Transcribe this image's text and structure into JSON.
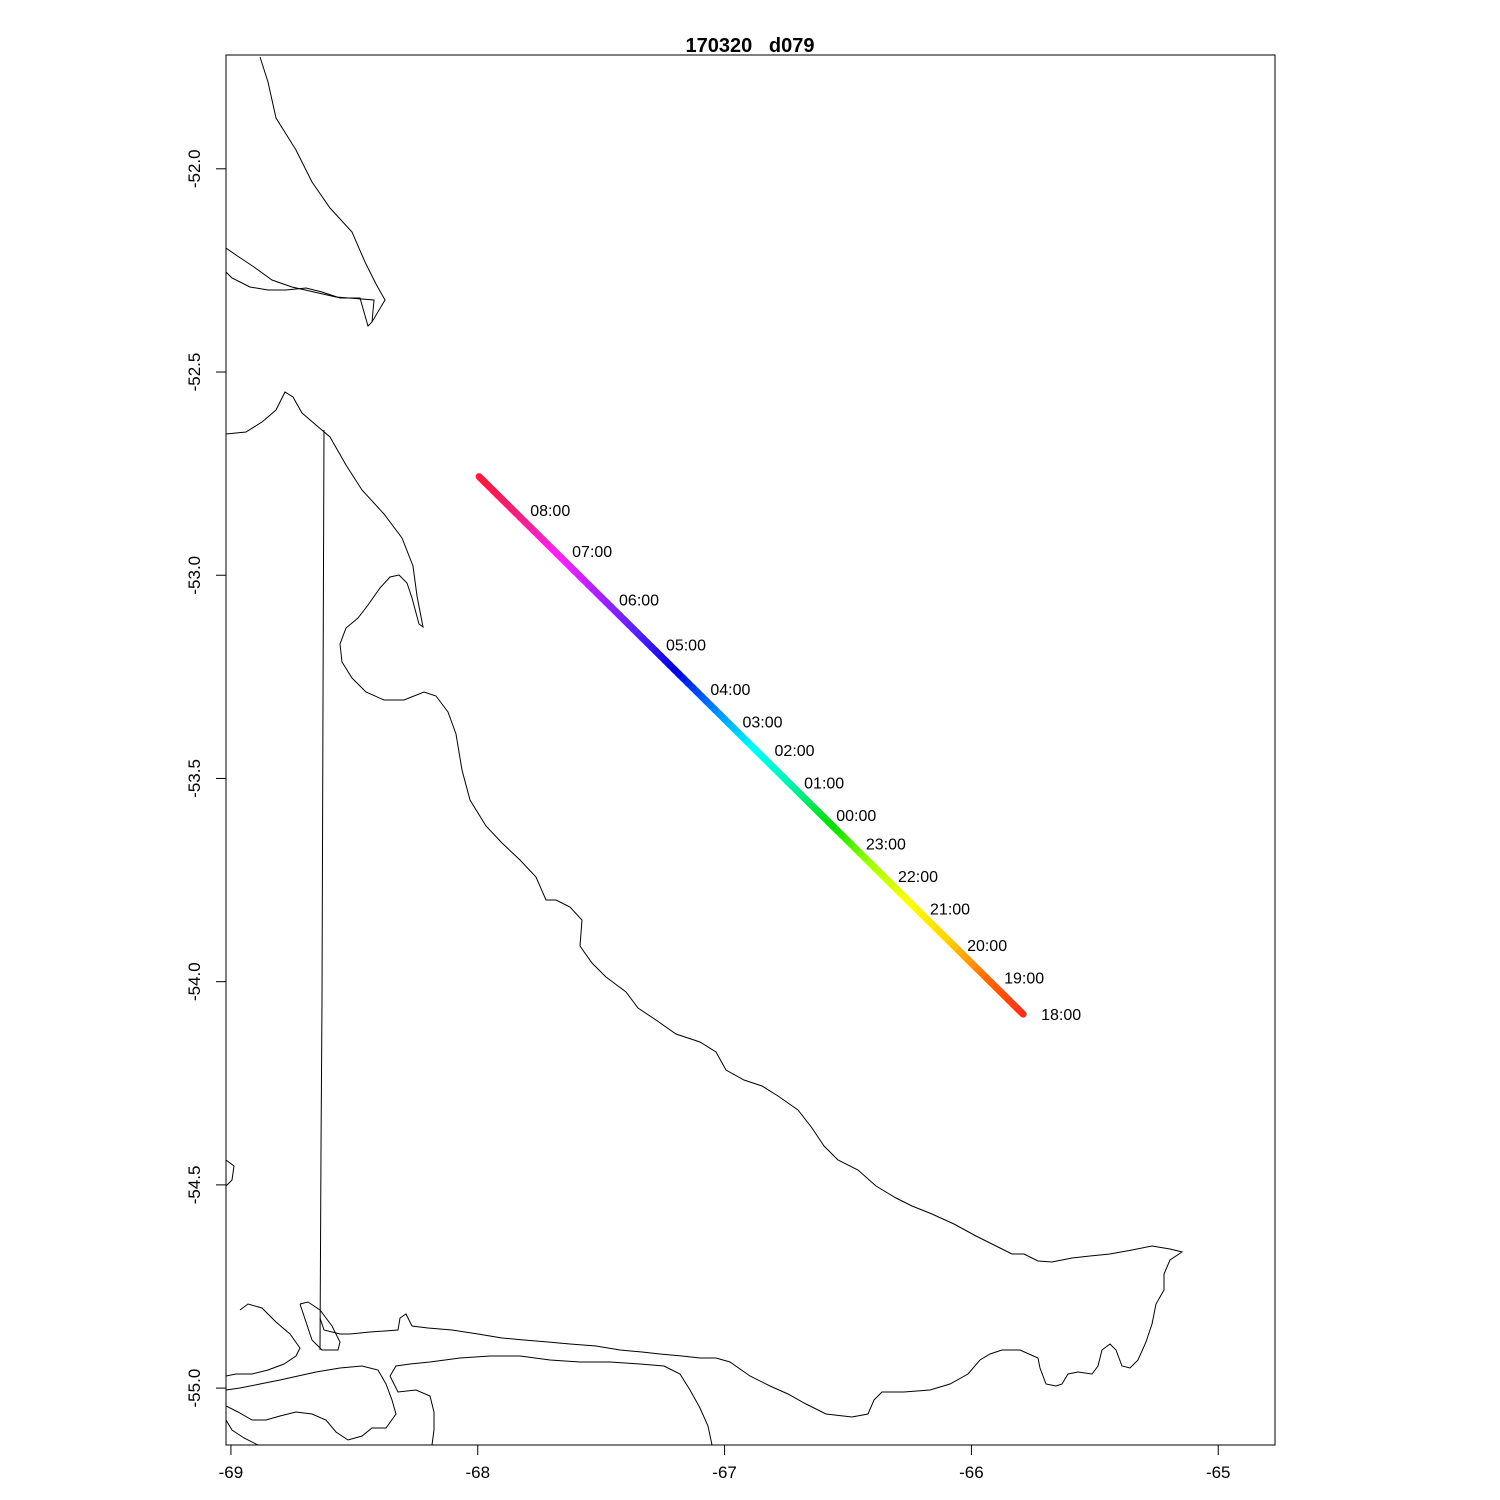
{
  "map": {
    "title": "170320   d079",
    "x_axis": {
      "range": [
        -69.02,
        -64.77
      ],
      "ticks": [
        -69,
        -68,
        -67,
        -66,
        -65
      ],
      "tick_labels": [
        "-69",
        "-68",
        "-67",
        "-66",
        "-65"
      ]
    },
    "y_axis": {
      "range": [
        -55.14,
        -51.72
      ],
      "ticks": [
        -52.0,
        -52.5,
        -53.0,
        -53.5,
        -54.0,
        -54.5,
        -55.0
      ],
      "tick_labels": [
        "-52.0",
        "-52.5",
        "-53.0",
        "-53.5",
        "-54.0",
        "-54.5",
        "-55.0"
      ]
    },
    "track": {
      "start": {
        "lon": -65.79,
        "lat": -54.08
      },
      "end": {
        "lon": -67.99,
        "lat": -52.76
      },
      "color_stops": [
        "#ff2a1a",
        "#ff6a00",
        "#ffd400",
        "#ffff00",
        "#a0ff00",
        "#00dd00",
        "#00eeaa",
        "#00ffff",
        "#0088ff",
        "#0000dd",
        "#5522ff",
        "#aa22ff",
        "#ff22ff",
        "#ee2288",
        "#ff1a3a"
      ]
    },
    "time_labels": [
      {
        "text": "18:00",
        "lon": -65.75,
        "lat": -54.08
      },
      {
        "text": "19:00",
        "lon": -65.9,
        "lat": -53.99
      },
      {
        "text": "20:00",
        "lon": -66.05,
        "lat": -53.91
      },
      {
        "text": "21:00",
        "lon": -66.2,
        "lat": -53.82
      },
      {
        "text": "22:00",
        "lon": -66.33,
        "lat": -53.74
      },
      {
        "text": "23:00",
        "lon": -66.46,
        "lat": -53.66
      },
      {
        "text": "00:00",
        "lon": -66.58,
        "lat": -53.59
      },
      {
        "text": "01:00",
        "lon": -66.71,
        "lat": -53.51
      },
      {
        "text": "02:00",
        "lon": -66.83,
        "lat": -53.43
      },
      {
        "text": "03:00",
        "lon": -66.96,
        "lat": -53.36
      },
      {
        "text": "04:00",
        "lon": -67.09,
        "lat": -53.28
      },
      {
        "text": "05:00",
        "lon": -67.27,
        "lat": -53.17
      },
      {
        "text": "06:00",
        "lon": -67.46,
        "lat": -53.06
      },
      {
        "text": "07:00",
        "lon": -67.65,
        "lat": -52.94
      },
      {
        "text": "08:00",
        "lon": -67.82,
        "lat": -52.84
      }
    ]
  }
}
